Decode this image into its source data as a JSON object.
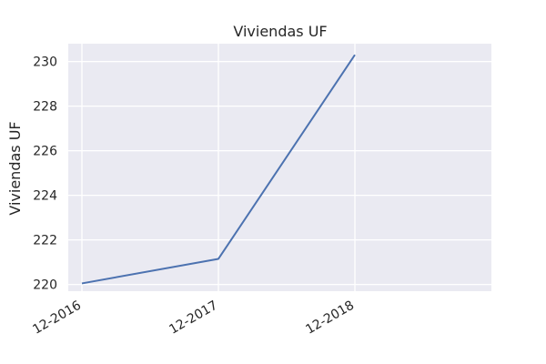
{
  "chart_data": {
    "type": "line",
    "title": "Viviendas UF",
    "xlabel": "",
    "ylabel": "Viviendas UF",
    "x": [
      "12-2016",
      "12-2017",
      "12-2018"
    ],
    "x_ticks": [
      "12-2016",
      "12-2017",
      "12-2018"
    ],
    "series": [
      {
        "values": [
          220.05,
          221.15,
          230.3
        ]
      }
    ],
    "ylim": [
      219.7,
      230.8
    ],
    "y_ticks": [
      220,
      222,
      224,
      226,
      228,
      230
    ],
    "grid": true,
    "legend": "none",
    "background_color": "#EAEAF2",
    "grid_color": "#FFFFFF",
    "line_color": "#4C72B0"
  }
}
